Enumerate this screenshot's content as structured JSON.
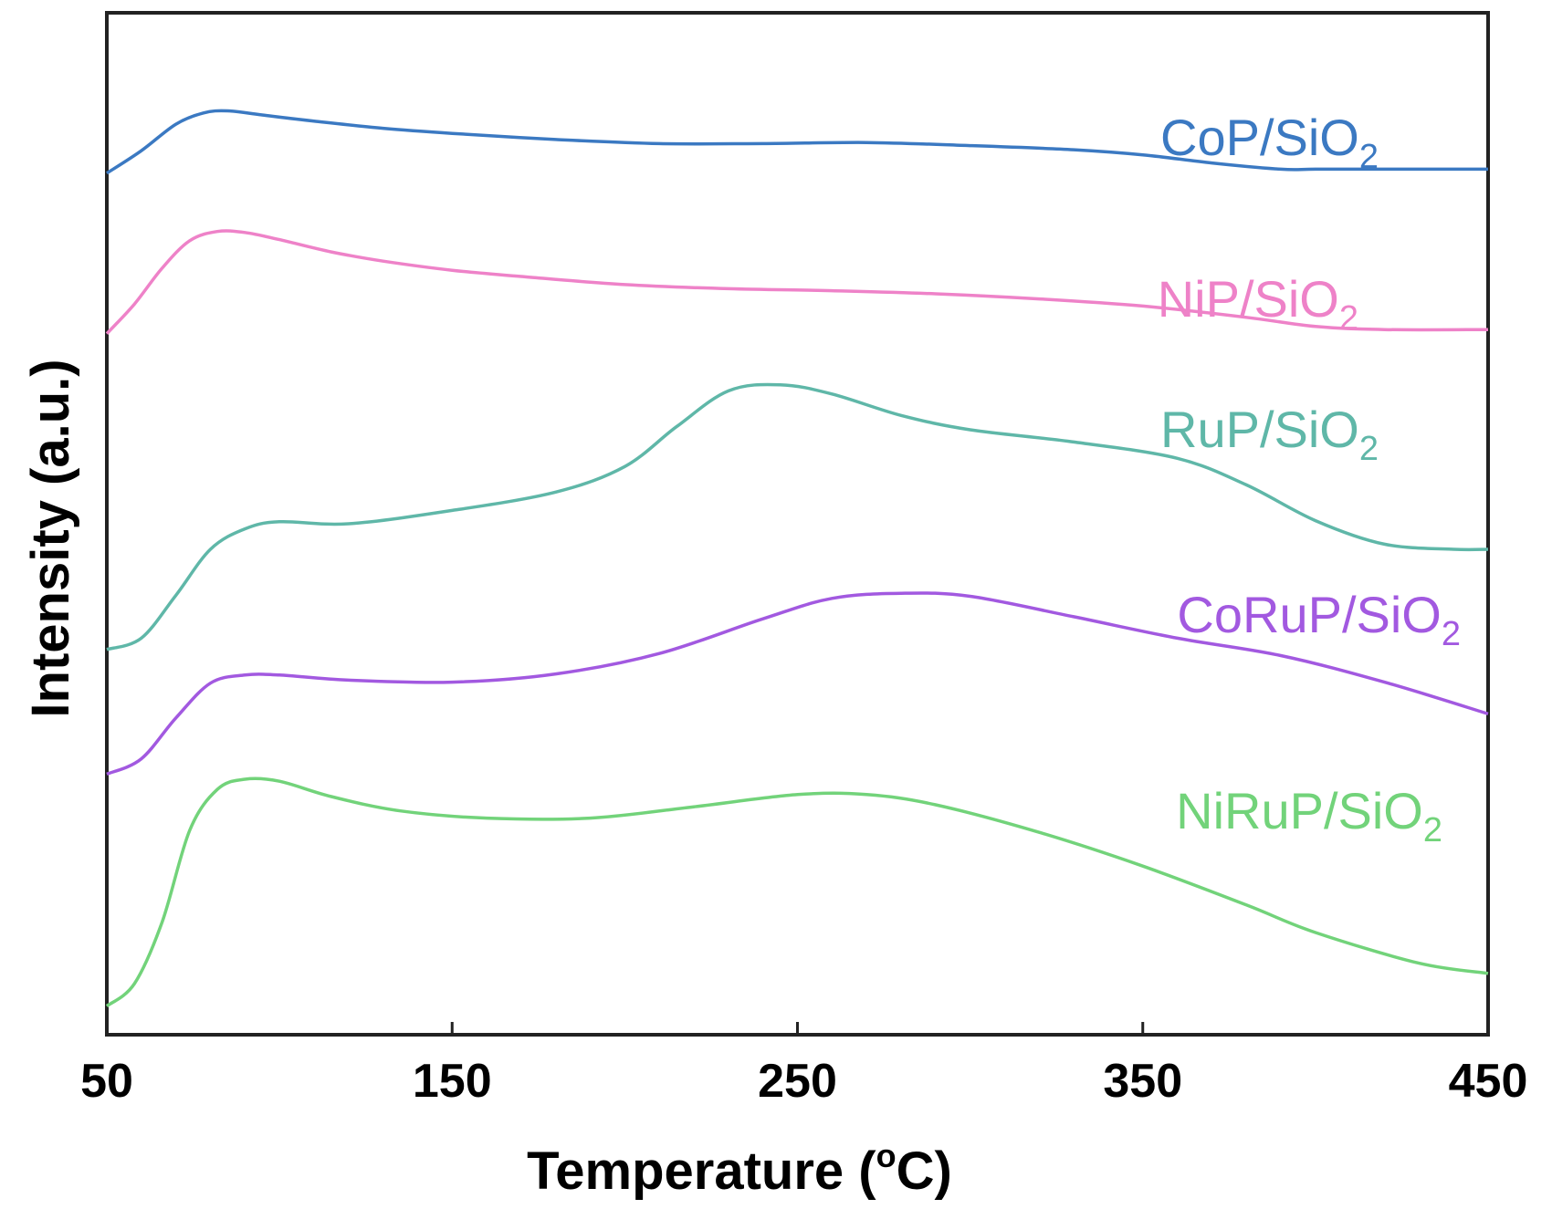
{
  "chart_data": {
    "type": "line",
    "title": "",
    "xlabel": "Temperature (",
    "xlabel_sup": "o",
    "xlabel_unit": "C)",
    "ylabel": "Intensity (a.u.)",
    "xlim": [
      50,
      450
    ],
    "ylim": [
      0,
      100
    ],
    "yticks_shown": false,
    "grid": false,
    "xticks": [
      50,
      150,
      250,
      350,
      450
    ],
    "xtick_labels": [
      "50",
      "150",
      "250",
      "350",
      "450"
    ],
    "series": [
      {
        "name": "CoP/SiO2",
        "label_main": "CoP/SiO",
        "label_sub": "2",
        "color": "#3b79c2",
        "x": [
          50,
          60,
          70,
          78,
          85,
          95,
          110,
          130,
          150,
          180,
          210,
          240,
          270,
          300,
          330,
          350,
          370,
          390,
          400,
          420,
          450
        ],
        "y": [
          84.3,
          86.5,
          89.1,
          90.2,
          90.4,
          90.0,
          89.4,
          88.7,
          88.2,
          87.6,
          87.2,
          87.2,
          87.3,
          87.0,
          86.6,
          86.1,
          85.3,
          84.7,
          84.7,
          84.7,
          84.7
        ]
      },
      {
        "name": "NiP/SiO2",
        "label_main": "NiP/SiO",
        "label_sub": "2",
        "color": "#ee82c8",
        "x": [
          50,
          58,
          66,
          74,
          82,
          90,
          100,
          115,
          130,
          150,
          170,
          200,
          230,
          260,
          290,
          320,
          350,
          380,
          400,
          420,
          450
        ],
        "y": [
          68.6,
          71.5,
          75.0,
          77.7,
          78.6,
          78.5,
          77.8,
          76.6,
          75.7,
          74.8,
          74.2,
          73.4,
          73.0,
          72.8,
          72.5,
          72.0,
          71.3,
          70.2,
          69.3,
          69.0,
          69.0
        ]
      },
      {
        "name": "RuP/SiO2",
        "label_main": "RuP/SiO",
        "label_sub": "2",
        "color": "#5fb7a8",
        "x": [
          50,
          60,
          70,
          80,
          90,
          100,
          120,
          150,
          180,
          200,
          215,
          230,
          245,
          260,
          280,
          300,
          330,
          360,
          380,
          400,
          420,
          440,
          450
        ],
        "y": [
          37.7,
          38.8,
          43.0,
          47.5,
          49.5,
          50.2,
          50.0,
          51.3,
          53.1,
          55.6,
          59.5,
          63.0,
          63.6,
          62.7,
          60.6,
          59.2,
          58.0,
          56.4,
          53.8,
          50.3,
          48.0,
          47.5,
          47.5
        ]
      },
      {
        "name": "CoRuP/SiO2",
        "label_main": "CoRuP/SiO",
        "label_sub": "2",
        "color": "#a259e0",
        "x": [
          50,
          60,
          70,
          80,
          90,
          100,
          120,
          150,
          180,
          210,
          240,
          260,
          280,
          300,
          330,
          360,
          390,
          420,
          450
        ],
        "y": [
          25.5,
          27.0,
          31.0,
          34.4,
          35.2,
          35.2,
          34.7,
          34.5,
          35.3,
          37.3,
          40.7,
          42.7,
          43.2,
          42.9,
          40.9,
          38.8,
          37.1,
          34.5,
          31.4
        ]
      },
      {
        "name": "NiRuP/SiO2",
        "label_main": "NiRuP/SiO",
        "label_sub": "2",
        "color": "#72d37a",
        "x": [
          50,
          58,
          66,
          74,
          82,
          90,
          100,
          115,
          135,
          160,
          190,
          220,
          250,
          270,
          290,
          320,
          350,
          380,
          400,
          430,
          450
        ],
        "y": [
          2.8,
          5.0,
          11.0,
          20.0,
          24.0,
          25.0,
          24.8,
          23.3,
          21.9,
          21.2,
          21.2,
          22.3,
          23.5,
          23.5,
          22.5,
          19.8,
          16.5,
          12.7,
          10.0,
          7.0,
          6.0
        ]
      }
    ]
  }
}
